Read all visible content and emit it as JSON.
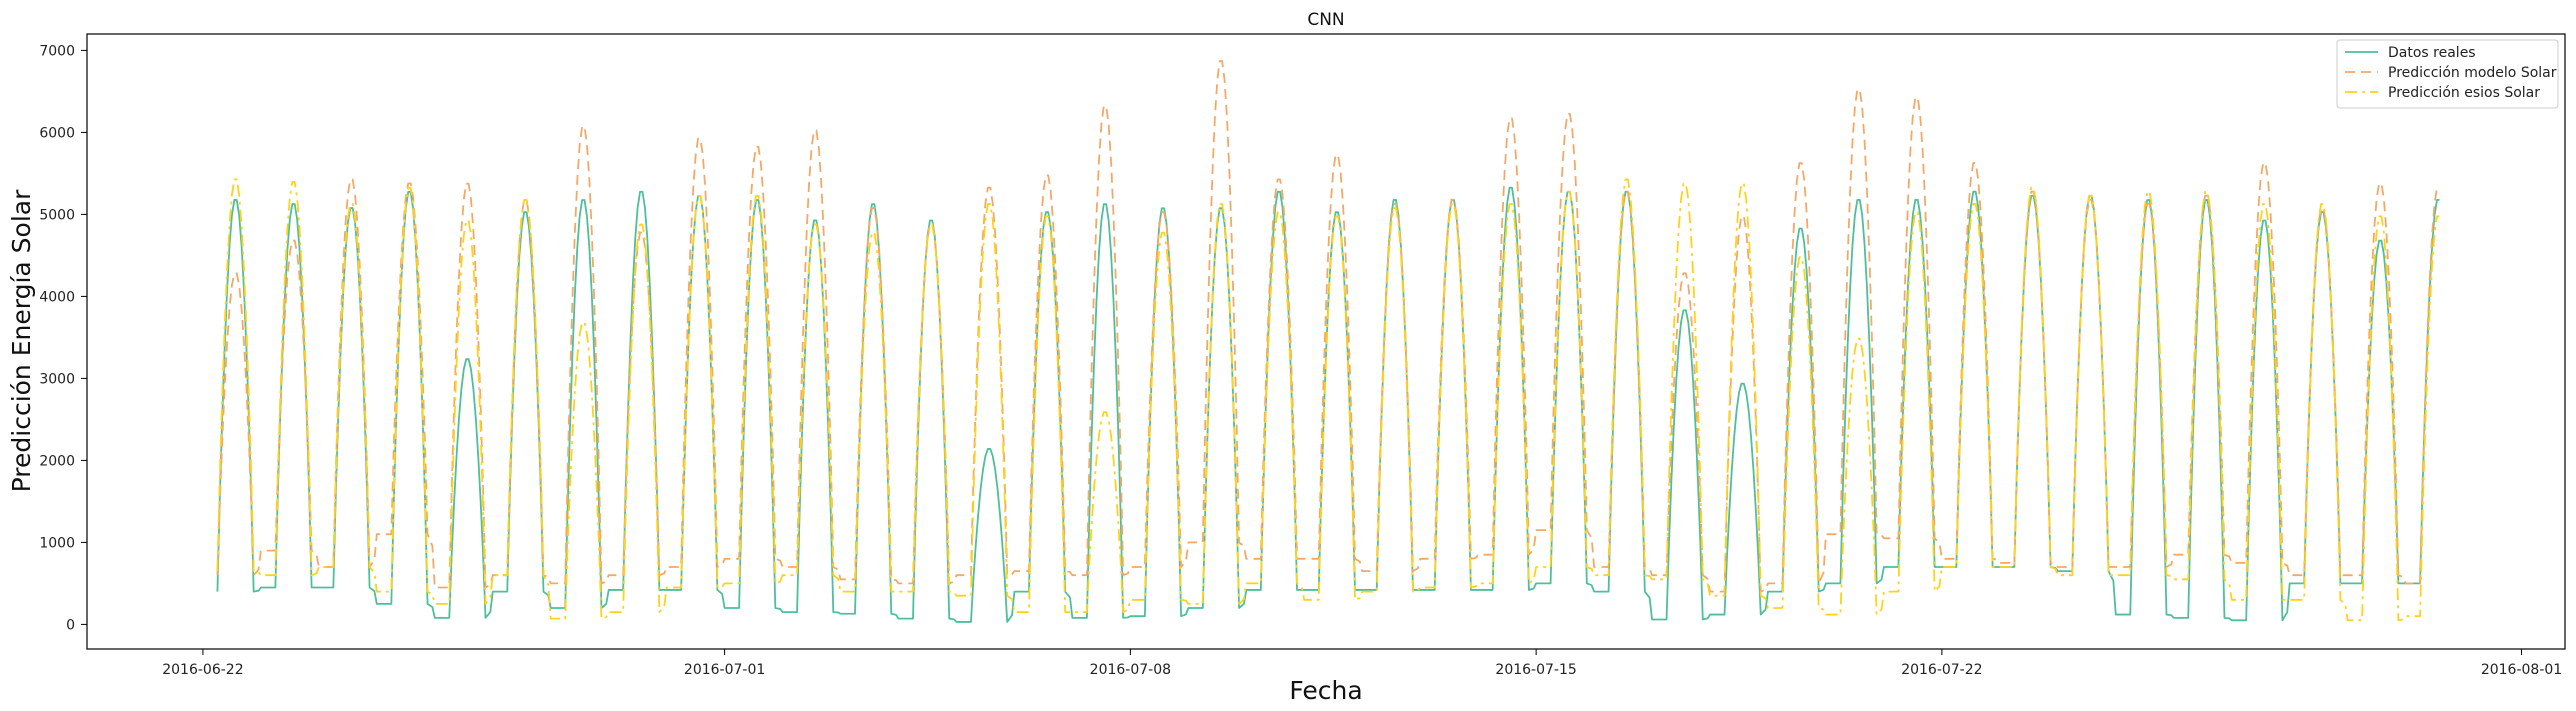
{
  "chart_data": {
    "type": "line",
    "title": "CNN",
    "xlabel": "Fecha",
    "ylabel": "Predicción Energía Solar",
    "xlim": [
      "2016-06-20",
      "2016-08-01T18:00"
    ],
    "ylim": [
      -300,
      7200
    ],
    "x_ticks": [
      "2016-06-22",
      "2016-07-01",
      "2016-07-08",
      "2016-07-15",
      "2016-07-22",
      "2016-08-01"
    ],
    "y_ticks": [
      0,
      1000,
      2000,
      3000,
      4000,
      5000,
      6000,
      7000
    ],
    "grid": false,
    "legend_position": "top-right",
    "days": [
      "2016-06-22",
      "2016-06-23",
      "2016-06-24",
      "2016-06-25",
      "2016-06-26",
      "2016-06-27",
      "2016-06-28",
      "2016-06-29",
      "2016-06-30",
      "2016-07-01",
      "2016-07-02",
      "2016-07-03",
      "2016-07-04",
      "2016-07-05",
      "2016-07-06",
      "2016-07-07",
      "2016-07-08",
      "2016-07-09",
      "2016-07-10",
      "2016-07-11",
      "2016-07-12",
      "2016-07-13",
      "2016-07-14",
      "2016-07-15",
      "2016-07-16",
      "2016-07-17",
      "2016-07-18",
      "2016-07-19",
      "2016-07-20",
      "2016-07-21",
      "2016-07-22",
      "2016-07-23",
      "2016-07-24",
      "2016-07-25",
      "2016-07-26",
      "2016-07-27",
      "2016-07-28",
      "2016-07-29",
      "2016-07-30"
    ],
    "series": [
      {
        "name": "Datos reales",
        "color": "#4dbf9a",
        "dash": "solid",
        "daily_peak": [
          5200,
          5150,
          5100,
          5300,
          3250,
          5050,
          5200,
          5300,
          5250,
          5200,
          4950,
          5150,
          4950,
          2150,
          5050,
          5150,
          5100,
          5100,
          5300,
          5050,
          5200,
          5200,
          5350,
          5300,
          5300,
          3850,
          2950,
          4850,
          5200,
          5200,
          5300,
          5250,
          5250,
          5200,
          5200,
          4950,
          5050,
          4700,
          5200
        ],
        "daily_base": [
          400,
          450,
          450,
          250,
          80,
          400,
          200,
          420,
          420,
          200,
          150,
          130,
          70,
          30,
          400,
          80,
          100,
          200,
          420,
          420,
          420,
          420,
          420,
          500,
          400,
          60,
          120,
          400,
          500,
          700,
          700,
          700,
          650,
          120,
          80,
          50,
          500,
          500,
          500
        ]
      },
      {
        "name": "Predicción modelo Solar",
        "color": "#f4a868",
        "dash": "dashed",
        "daily_peak": [
          4300,
          4700,
          5450,
          5400,
          5400,
          5200,
          6100,
          4800,
          5950,
          5850,
          6050,
          5100,
          4900,
          5350,
          5500,
          6350,
          5050,
          6900,
          5450,
          5750,
          5150,
          5200,
          6200,
          6250,
          5300,
          4300,
          5000,
          5650,
          6550,
          6450,
          5650,
          5300,
          5200,
          5150,
          5250,
          5650,
          5100,
          5400,
          5350
        ],
        "daily_base": [
          600,
          900,
          700,
          1100,
          450,
          600,
          500,
          600,
          700,
          800,
          700,
          550,
          500,
          600,
          650,
          600,
          700,
          1000,
          800,
          800,
          650,
          800,
          850,
          1150,
          700,
          600,
          400,
          500,
          1100,
          1050,
          800,
          750,
          700,
          700,
          850,
          750,
          600,
          600,
          500
        ]
      },
      {
        "name": "Predicción esios Solar",
        "color": "#ffd21a",
        "dash": "dashdot",
        "daily_peak": [
          5450,
          5420,
          5150,
          5350,
          4950,
          5200,
          3700,
          4900,
          5250,
          5250,
          4900,
          4800,
          4900,
          5150,
          5000,
          2600,
          4800,
          5150,
          5050,
          5000,
          5100,
          5150,
          5150,
          5300,
          5450,
          5400,
          5400,
          4500,
          3500,
          5050,
          5150,
          5350,
          5250,
          5300,
          5300,
          5150,
          5150,
          5000,
          5000
        ],
        "daily_base": [
          650,
          600,
          700,
          400,
          250,
          600,
          70,
          150,
          450,
          500,
          600,
          400,
          400,
          350,
          150,
          150,
          300,
          250,
          500,
          300,
          400,
          450,
          500,
          700,
          600,
          550,
          350,
          200,
          120,
          400,
          700,
          700,
          600,
          600,
          550,
          300,
          300,
          50,
          100
        ]
      }
    ]
  }
}
